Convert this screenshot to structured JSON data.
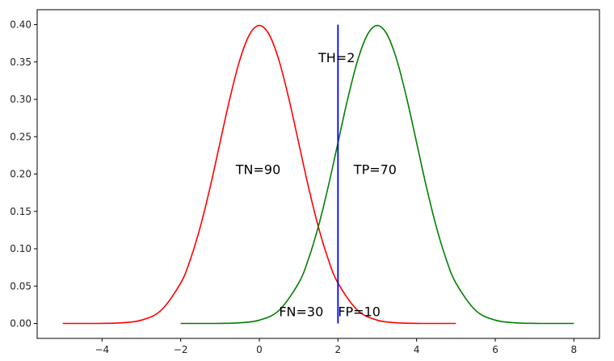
{
  "chart_data": {
    "type": "line",
    "title": "",
    "xlabel": "",
    "ylabel": "",
    "xlim": [
      -5.65,
      8.65
    ],
    "ylim": [
      -0.02,
      0.42
    ],
    "grid": false,
    "xticks": [
      {
        "value": -4,
        "label": "−4"
      },
      {
        "value": -2,
        "label": "−2"
      },
      {
        "value": 0,
        "label": "0"
      },
      {
        "value": 2,
        "label": "2"
      },
      {
        "value": 4,
        "label": "4"
      },
      {
        "value": 6,
        "label": "6"
      },
      {
        "value": 8,
        "label": "8"
      }
    ],
    "yticks": [
      {
        "value": 0.0,
        "label": "0.00"
      },
      {
        "value": 0.05,
        "label": "0.05"
      },
      {
        "value": 0.1,
        "label": "0.10"
      },
      {
        "value": 0.15,
        "label": "0.15"
      },
      {
        "value": 0.2,
        "label": "0.20"
      },
      {
        "value": 0.25,
        "label": "0.25"
      },
      {
        "value": 0.3,
        "label": "0.30"
      },
      {
        "value": 0.35,
        "label": "0.35"
      },
      {
        "value": 0.4,
        "label": "0.40"
      }
    ],
    "series": [
      {
        "color": "#ff0000",
        "x": [
          -5,
          -4.5,
          -4,
          -3.5,
          -3,
          -2.5,
          -2,
          -1.75,
          -1.5,
          -1.25,
          -1,
          -0.75,
          -0.5,
          -0.25,
          0,
          0.25,
          0.5,
          0.75,
          1,
          1.25,
          1.5,
          1.75,
          2,
          2.5,
          3,
          3.5,
          4,
          4.5,
          5
        ],
        "y": [
          0.0,
          0.0,
          0.0001,
          0.0009,
          0.0044,
          0.0175,
          0.054,
          0.0863,
          0.1295,
          0.1826,
          0.242,
          0.3011,
          0.3521,
          0.3867,
          0.3989,
          0.3867,
          0.3521,
          0.3011,
          0.242,
          0.1826,
          0.1295,
          0.0863,
          0.054,
          0.0175,
          0.0044,
          0.0009,
          0.0001,
          0.0,
          0.0
        ]
      },
      {
        "color": "#008000",
        "x": [
          -2,
          -1.5,
          -1,
          -0.5,
          0,
          0.5,
          1,
          1.25,
          1.5,
          1.75,
          2,
          2.25,
          2.5,
          2.75,
          3,
          3.25,
          3.5,
          3.75,
          4,
          4.25,
          4.5,
          4.75,
          5,
          5.5,
          6,
          6.5,
          7,
          7.5,
          8
        ],
        "y": [
          0.0,
          0.0,
          0.0001,
          0.0009,
          0.0044,
          0.0175,
          0.054,
          0.0863,
          0.1295,
          0.1826,
          0.242,
          0.3011,
          0.3521,
          0.3867,
          0.3989,
          0.3867,
          0.3521,
          0.3011,
          0.242,
          0.1826,
          0.1295,
          0.0863,
          0.054,
          0.0175,
          0.0044,
          0.0009,
          0.0001,
          0.0,
          0.0
        ]
      }
    ],
    "threshold": {
      "x": 2,
      "y_from": 0.0,
      "y_to": 0.4,
      "color": "#0000ff"
    },
    "annotations": [
      {
        "text": "TH=2",
        "x": 1.5,
        "y": 0.35
      },
      {
        "text": "TN=90",
        "x": -0.6,
        "y": 0.2
      },
      {
        "text": "TP=70",
        "x": 2.4,
        "y": 0.2
      },
      {
        "text": "FN=30",
        "x": 0.5,
        "y": 0.01
      },
      {
        "text": "FP=10",
        "x": 2.0,
        "y": 0.01
      }
    ]
  }
}
